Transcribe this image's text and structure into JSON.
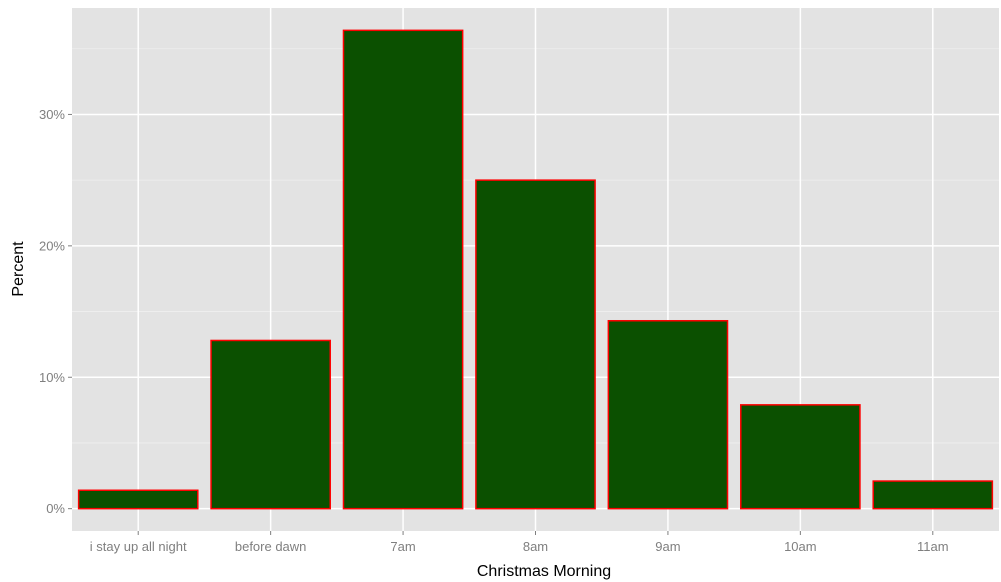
{
  "chart_data": {
    "type": "bar",
    "title": "",
    "xlabel": "Christmas Morning",
    "ylabel": "Percent",
    "categories": [
      "i stay up all night",
      "before dawn",
      "7am",
      "8am",
      "9am",
      "10am",
      "11am"
    ],
    "values": [
      1.4,
      12.8,
      36.4,
      25.0,
      14.3,
      7.9,
      2.1
    ],
    "ylim": [
      -1.7,
      38.1
    ],
    "y_ticks": [
      0,
      10,
      20,
      30
    ],
    "y_tick_labels": [
      "0%",
      "10%",
      "20%",
      "30%"
    ],
    "grid": true,
    "legend": "none",
    "colors": {
      "panel_background": "#e3e3e3",
      "gridline_major": "#ffffff",
      "bar_fill": "#0b5000",
      "bar_outline": "#ff0000",
      "tick_label": "#7f7f7f",
      "tick_mark": "#7f7f7f",
      "axis_title": "#000000"
    }
  }
}
